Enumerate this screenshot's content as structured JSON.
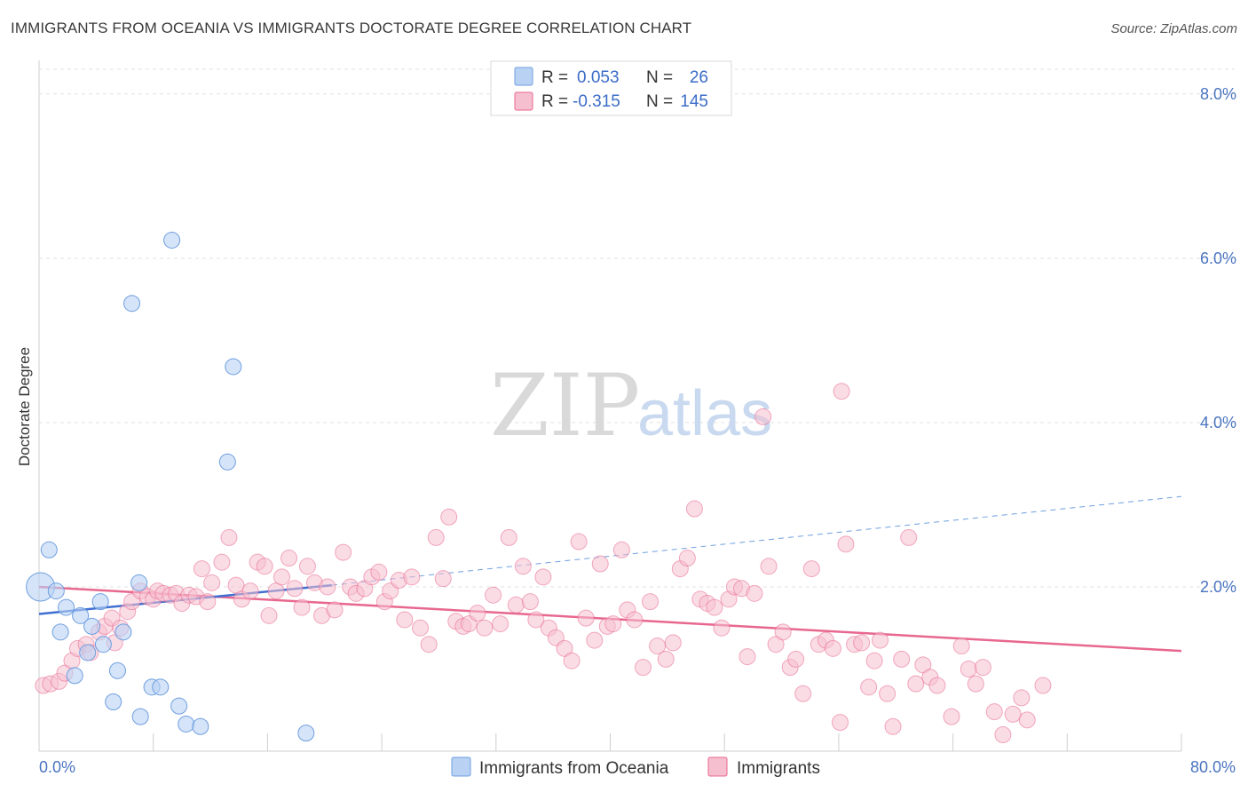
{
  "title": "IMMIGRANTS FROM OCEANIA VS IMMIGRANTS DOCTORATE DEGREE CORRELATION CHART",
  "source": "Source: ZipAtlas.com",
  "watermark": {
    "zip": "ZIP",
    "atlas": "atlas"
  },
  "colors": {
    "blue": "#6f9fe0",
    "blue_fill": "#b9d2f3",
    "pink": "#e8678f",
    "pink_fill": "#f6bfd0",
    "tick": "#4a74c0"
  },
  "legend": {
    "rows": [
      {
        "r_label": "R =",
        "r_value": "0.053",
        "n_label": "N =",
        "n_value": "26"
      },
      {
        "r_label": "R =",
        "r_value": "-0.315",
        "n_label": "N =",
        "n_value": "145"
      }
    ]
  },
  "bottom_legend": [
    "Immigrants from Oceania",
    "Immigrants"
  ],
  "chart_data": {
    "type": "scatter",
    "xlabel": "",
    "ylabel": "Doctorate Degree",
    "xlim": [
      0,
      80
    ],
    "ylim": [
      0,
      8.3
    ],
    "x_tick_labels": [
      "0.0%",
      "80.0%"
    ],
    "y_ticks": [
      2,
      4,
      6,
      8
    ],
    "y_tick_labels": [
      "2.0%",
      "4.0%",
      "6.0%",
      "8.0%"
    ],
    "grid": true,
    "series": [
      {
        "name": "Immigrants from Oceania",
        "points": [
          [
            0.1,
            2.0
          ],
          [
            0.7,
            2.45
          ],
          [
            1.2,
            1.95
          ],
          [
            1.5,
            1.45
          ],
          [
            1.9,
            1.75
          ],
          [
            2.5,
            0.92
          ],
          [
            2.9,
            1.65
          ],
          [
            3.4,
            1.2
          ],
          [
            3.7,
            1.52
          ],
          [
            4.3,
            1.82
          ],
          [
            4.5,
            1.3
          ],
          [
            5.2,
            0.6
          ],
          [
            5.5,
            0.98
          ],
          [
            5.9,
            1.45
          ],
          [
            6.5,
            5.45
          ],
          [
            7.0,
            2.05
          ],
          [
            7.1,
            0.42
          ],
          [
            7.9,
            0.78
          ],
          [
            8.5,
            0.78
          ],
          [
            9.3,
            6.22
          ],
          [
            9.8,
            0.55
          ],
          [
            10.3,
            0.33
          ],
          [
            11.3,
            0.3
          ],
          [
            13.2,
            3.52
          ],
          [
            13.6,
            4.68
          ],
          [
            18.7,
            0.22
          ]
        ],
        "trend": {
          "x0": 0,
          "y0": 1.67,
          "x1": 20.5,
          "y1": 2.02,
          "x_dash_end": 80,
          "y_dash_end": 3.1
        }
      },
      {
        "name": "Immigrants",
        "points": [
          [
            0.3,
            0.8
          ],
          [
            0.8,
            0.82
          ],
          [
            1.4,
            0.85
          ],
          [
            1.8,
            0.95
          ],
          [
            2.3,
            1.1
          ],
          [
            2.7,
            1.25
          ],
          [
            3.3,
            1.3
          ],
          [
            3.6,
            1.2
          ],
          [
            4.2,
            1.45
          ],
          [
            4.6,
            1.52
          ],
          [
            5.1,
            1.62
          ],
          [
            5.3,
            1.32
          ],
          [
            5.7,
            1.5
          ],
          [
            6.2,
            1.7
          ],
          [
            6.5,
            1.82
          ],
          [
            7.1,
            1.95
          ],
          [
            7.6,
            1.88
          ],
          [
            8.0,
            1.85
          ],
          [
            8.3,
            1.95
          ],
          [
            8.7,
            1.92
          ],
          [
            9.2,
            1.9
          ],
          [
            9.6,
            1.92
          ],
          [
            10.0,
            1.8
          ],
          [
            10.5,
            1.9
          ],
          [
            11.0,
            1.88
          ],
          [
            11.4,
            2.22
          ],
          [
            11.8,
            1.82
          ],
          [
            12.1,
            2.05
          ],
          [
            12.8,
            2.3
          ],
          [
            13.3,
            2.6
          ],
          [
            13.8,
            2.02
          ],
          [
            14.2,
            1.85
          ],
          [
            14.8,
            1.95
          ],
          [
            15.3,
            2.3
          ],
          [
            15.8,
            2.25
          ],
          [
            16.1,
            1.65
          ],
          [
            16.6,
            1.95
          ],
          [
            17.0,
            2.12
          ],
          [
            17.5,
            2.35
          ],
          [
            17.9,
            1.98
          ],
          [
            18.4,
            1.75
          ],
          [
            18.8,
            2.25
          ],
          [
            19.3,
            2.05
          ],
          [
            19.8,
            1.65
          ],
          [
            20.2,
            2.0
          ],
          [
            20.7,
            1.72
          ],
          [
            21.3,
            2.42
          ],
          [
            21.8,
            2.0
          ],
          [
            22.2,
            1.92
          ],
          [
            22.8,
            1.98
          ],
          [
            23.3,
            2.12
          ],
          [
            23.8,
            2.18
          ],
          [
            24.2,
            1.82
          ],
          [
            24.6,
            1.95
          ],
          [
            25.2,
            2.08
          ],
          [
            25.6,
            1.6
          ],
          [
            26.1,
            2.12
          ],
          [
            26.7,
            1.5
          ],
          [
            27.3,
            1.3
          ],
          [
            27.8,
            2.6
          ],
          [
            28.3,
            2.1
          ],
          [
            28.7,
            2.85
          ],
          [
            29.2,
            1.58
          ],
          [
            29.7,
            1.52
          ],
          [
            30.1,
            1.55
          ],
          [
            30.7,
            1.68
          ],
          [
            31.2,
            1.5
          ],
          [
            31.8,
            1.9
          ],
          [
            32.3,
            1.55
          ],
          [
            32.9,
            2.6
          ],
          [
            33.4,
            1.78
          ],
          [
            33.9,
            2.25
          ],
          [
            34.4,
            1.82
          ],
          [
            34.8,
            1.6
          ],
          [
            35.3,
            2.12
          ],
          [
            35.7,
            1.5
          ],
          [
            36.2,
            1.38
          ],
          [
            36.8,
            1.25
          ],
          [
            37.3,
            1.1
          ],
          [
            37.8,
            2.55
          ],
          [
            38.3,
            1.62
          ],
          [
            38.9,
            1.35
          ],
          [
            39.3,
            2.28
          ],
          [
            39.8,
            1.52
          ],
          [
            40.2,
            1.55
          ],
          [
            40.8,
            2.45
          ],
          [
            41.2,
            1.72
          ],
          [
            41.7,
            1.6
          ],
          [
            42.3,
            1.02
          ],
          [
            42.8,
            1.82
          ],
          [
            43.3,
            1.28
          ],
          [
            43.9,
            1.12
          ],
          [
            44.4,
            1.32
          ],
          [
            44.9,
            2.22
          ],
          [
            45.4,
            2.35
          ],
          [
            45.9,
            2.95
          ],
          [
            46.3,
            1.85
          ],
          [
            46.8,
            1.8
          ],
          [
            47.3,
            1.75
          ],
          [
            47.8,
            1.5
          ],
          [
            48.3,
            1.85
          ],
          [
            48.7,
            2.0
          ],
          [
            49.2,
            1.98
          ],
          [
            49.6,
            1.15
          ],
          [
            50.1,
            1.92
          ],
          [
            50.7,
            4.07
          ],
          [
            51.1,
            2.25
          ],
          [
            51.6,
            1.3
          ],
          [
            52.1,
            1.45
          ],
          [
            52.6,
            1.02
          ],
          [
            53.0,
            1.12
          ],
          [
            53.5,
            0.7
          ],
          [
            54.1,
            2.22
          ],
          [
            54.6,
            1.3
          ],
          [
            55.1,
            1.35
          ],
          [
            55.6,
            1.25
          ],
          [
            56.1,
            0.35
          ],
          [
            56.5,
            2.52
          ],
          [
            56.2,
            4.38
          ],
          [
            57.1,
            1.3
          ],
          [
            57.6,
            1.32
          ],
          [
            58.1,
            0.78
          ],
          [
            58.5,
            1.1
          ],
          [
            58.9,
            1.35
          ],
          [
            59.4,
            0.7
          ],
          [
            59.8,
            0.3
          ],
          [
            60.4,
            1.12
          ],
          [
            60.9,
            2.6
          ],
          [
            61.4,
            0.82
          ],
          [
            61.9,
            1.05
          ],
          [
            62.4,
            0.9
          ],
          [
            62.9,
            0.8
          ],
          [
            63.9,
            0.42
          ],
          [
            64.6,
            1.28
          ],
          [
            65.1,
            1.0
          ],
          [
            65.6,
            0.82
          ],
          [
            66.1,
            1.02
          ],
          [
            66.9,
            0.48
          ],
          [
            67.5,
            0.2
          ],
          [
            68.2,
            0.45
          ],
          [
            68.8,
            0.65
          ],
          [
            69.2,
            0.38
          ],
          [
            70.3,
            0.8
          ]
        ],
        "trend": {
          "x0": 0,
          "y0": 2.0,
          "x1": 80,
          "y1": 1.22
        }
      }
    ]
  }
}
